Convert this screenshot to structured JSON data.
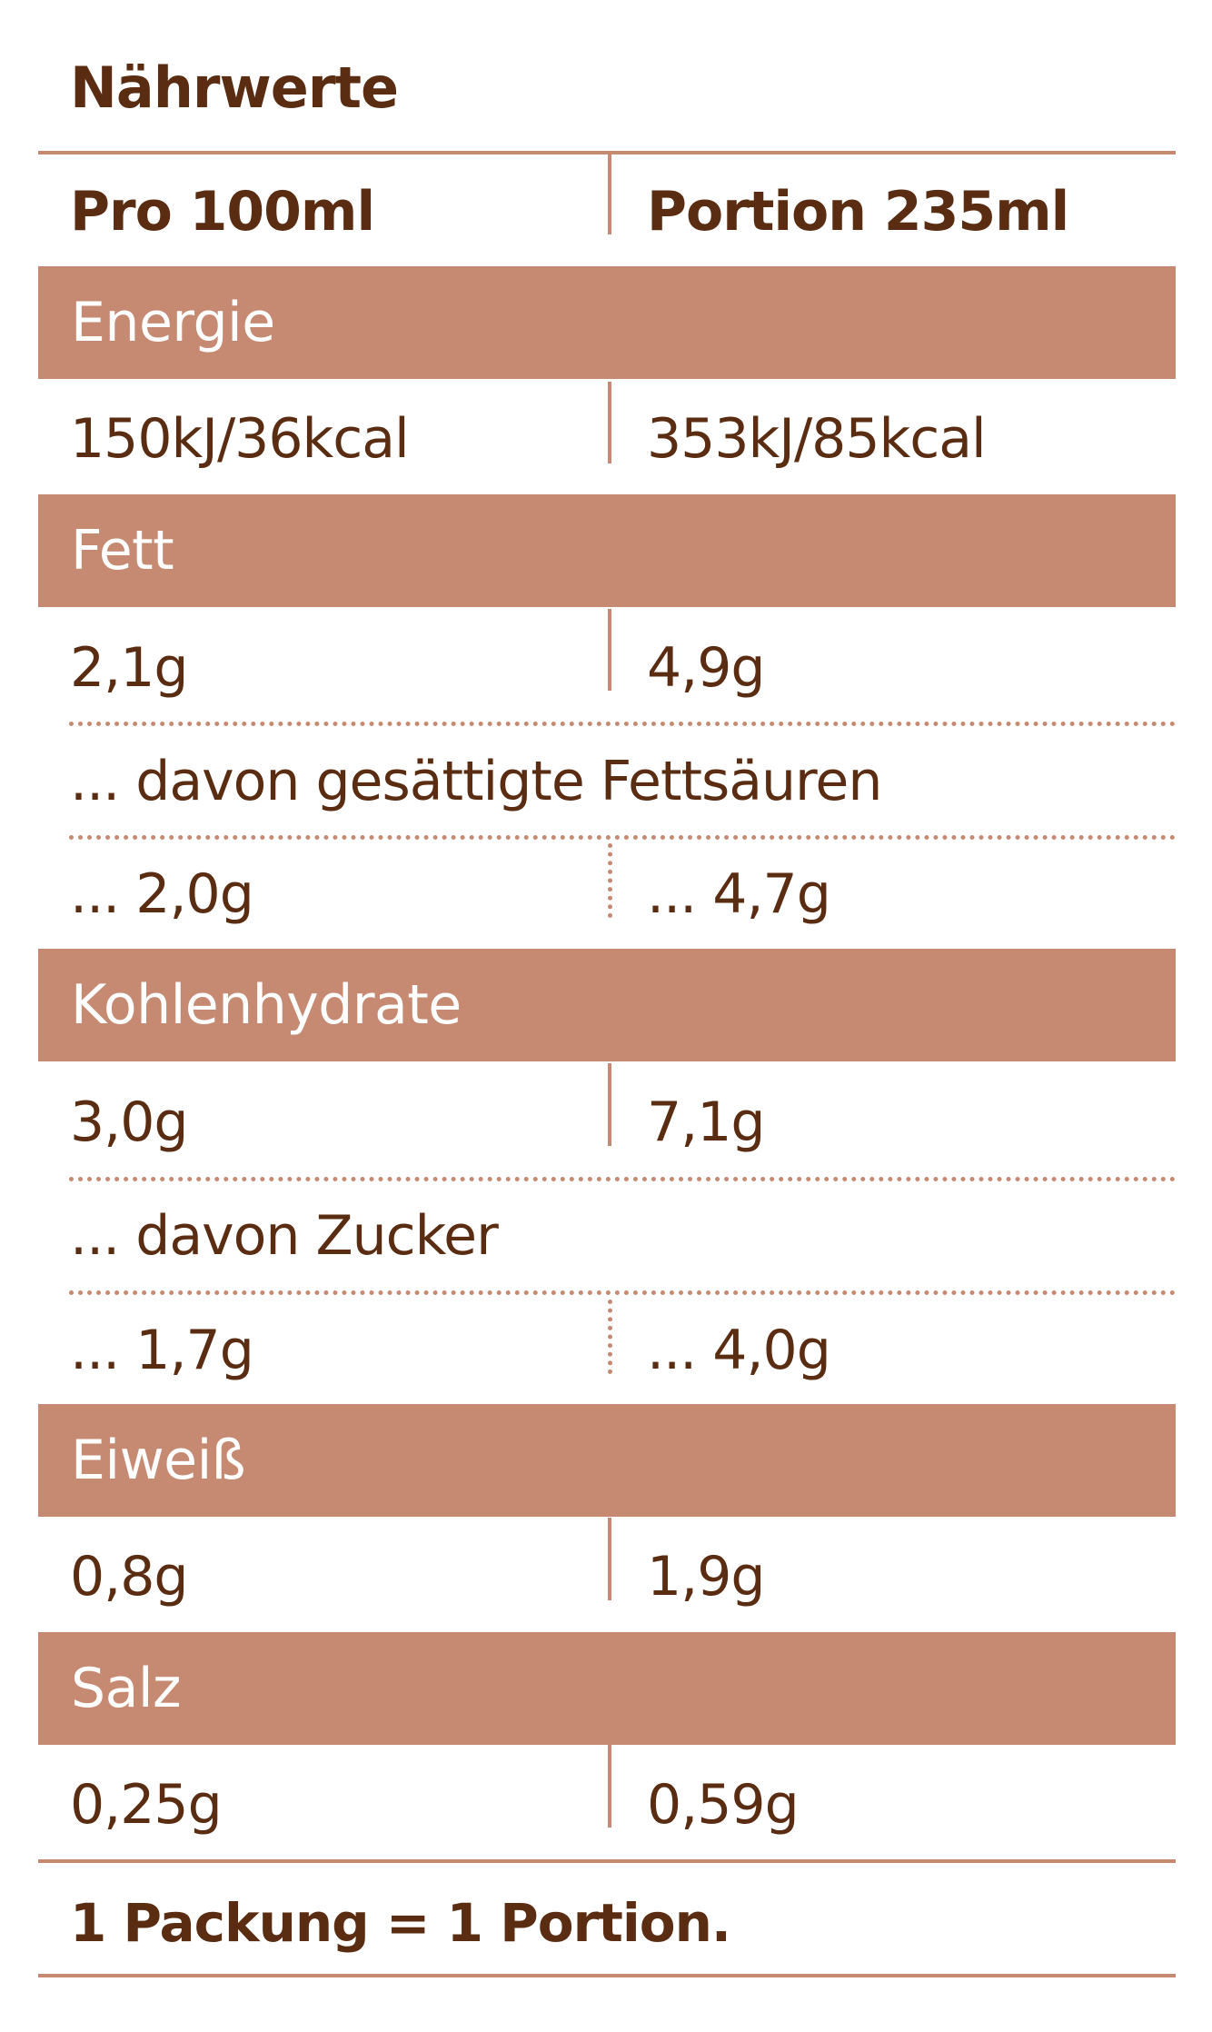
{
  "title": "Nährwerte",
  "header": {
    "col1": "Pro 100ml",
    "col2": "Portion 235ml"
  },
  "rows": {
    "energie": {
      "label": "Energie",
      "col1": "150kJ/36kcal",
      "col2": "353kJ/85kcal"
    },
    "fett": {
      "label": "Fett",
      "col1": "2,1g",
      "col2": "4,9g"
    },
    "fett_sub": {
      "label": "... davon gesättigte Fettsäuren",
      "col1": "... 2,0g",
      "col2": "... 4,7g"
    },
    "kohlenhydrate": {
      "label": "Kohlenhydrate",
      "col1": "3,0g",
      "col2": "7,1g"
    },
    "kh_sub": {
      "label": "... davon Zucker",
      "col1": "... 1,7g",
      "col2": "... 4,0g"
    },
    "eiweiss": {
      "label": "Eiweiß",
      "col1": "0,8g",
      "col2": "1,9g"
    },
    "salz": {
      "label": "Salz",
      "col1": "0,25g",
      "col2": "0,59g"
    }
  },
  "footer": "1 Packung = 1 Portion.",
  "colors": {
    "band": "#c68a72",
    "text": "#5a2d12",
    "band_text": "#ffffff"
  }
}
